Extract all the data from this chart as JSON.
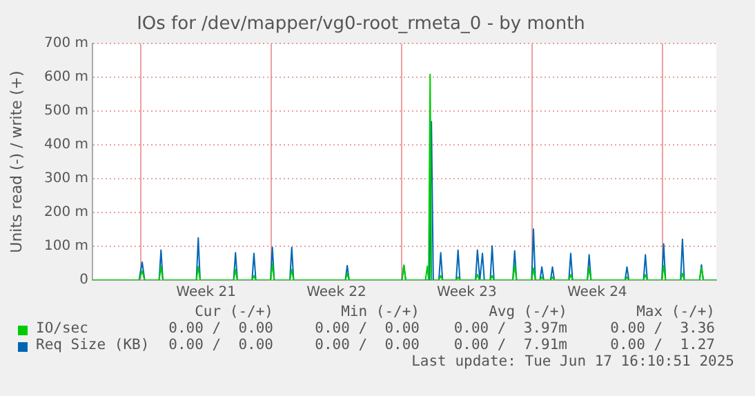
{
  "chart_data": {
    "type": "line",
    "title": "IOs for /dev/mapper/vg0-root_rmeta_0 - by month",
    "ylabel": "Units read (-) / write (+)",
    "xlim": [
      "2025-05-16T09:36",
      "2025-06-18T21:36"
    ],
    "xticks": [
      {
        "value": "2025-05-19",
        "label": null
      },
      {
        "value": "2025-05-22T12:00",
        "label": "Week 21"
      },
      {
        "value": "2025-05-26",
        "label": null
      },
      {
        "value": "2025-05-29T12:00",
        "label": "Week 22"
      },
      {
        "value": "2025-06-02",
        "label": null
      },
      {
        "value": "2025-06-05T12:00",
        "label": "Week 23"
      },
      {
        "value": "2025-06-09",
        "label": null
      },
      {
        "value": "2025-06-12T12:00",
        "label": "Week 24"
      },
      {
        "value": "2025-06-16",
        "label": null
      }
    ],
    "ylim": [
      0,
      700
    ],
    "yticks": [
      0,
      {
        "value": 100,
        "label": "100 m"
      },
      {
        "value": 200,
        "label": "200 m"
      },
      {
        "value": 300,
        "label": "300 m"
      },
      {
        "value": 400,
        "label": "400 m"
      },
      {
        "value": 500,
        "label": "500 m"
      },
      {
        "value": 600,
        "label": "600 m"
      },
      {
        "value": 700,
        "label": "700 m"
      }
    ],
    "grid": true,
    "legend": "bottom",
    "marker": "none",
    "line_style": "solid",
    "series": [
      {
        "name": "IO/sec",
        "color": "#00cc00",
        "x": [
          "2025-05-16T09:36",
          "2025-05-18T21:36",
          "2025-05-19T01:41",
          "2025-05-19T04:48",
          "2025-05-19T23:31",
          "2025-05-20T01:55",
          "2025-05-20T04:19",
          "2025-05-21T23:31",
          "2025-05-22T01:55",
          "2025-05-22T04:19",
          "2025-05-23T23:31",
          "2025-05-24T01:55",
          "2025-05-24T04:19",
          "2025-05-24T23:17",
          "2025-05-25T01:41",
          "2025-05-25T04:05",
          "2025-05-25T23:02",
          "2025-05-26T01:26",
          "2025-05-26T03:50",
          "2025-05-27T00:00",
          "2025-05-27T02:24",
          "2025-05-27T04:48",
          "2025-05-29T23:31",
          "2025-05-30T01:55",
          "2025-05-30T04:19",
          "2025-06-02T00:29",
          "2025-06-02T02:53",
          "2025-06-02T05:17",
          "2025-06-03T06:43",
          "2025-06-03T09:07",
          "2025-06-03T10:48",
          "2025-06-03T12:43",
          "2025-06-03T14:24",
          "2025-06-04T00:00",
          "2025-06-04T02:24",
          "2025-06-04T04:48",
          "2025-06-04T22:19",
          "2025-06-05T00:43",
          "2025-06-05T03:07",
          "2025-06-05T23:17",
          "2025-06-06T01:41",
          "2025-06-06T04:05",
          "2025-06-06T18:14",
          "2025-06-06T20:38",
          "2025-06-06T23:02",
          "2025-06-07T23:17",
          "2025-06-08T01:41",
          "2025-06-08T04:05",
          "2025-06-08T23:31",
          "2025-06-09T01:55",
          "2025-06-09T04:19",
          "2025-06-09T10:19",
          "2025-06-09T12:43",
          "2025-06-09T15:07",
          "2025-06-10T00:00",
          "2025-06-10T02:24",
          "2025-06-10T04:48",
          "2025-06-10T23:31",
          "2025-06-11T01:55",
          "2025-06-11T04:19",
          "2025-06-11T23:17",
          "2025-06-12T01:41",
          "2025-06-12T04:05",
          "2025-06-14T00:00",
          "2025-06-14T02:24",
          "2025-06-14T04:48",
          "2025-06-14T23:46",
          "2025-06-15T02:10",
          "2025-06-15T04:34",
          "2025-06-15T23:17",
          "2025-06-16T01:41",
          "2025-06-16T04:05",
          "2025-06-16T23:31",
          "2025-06-17T01:55",
          "2025-06-17T04:19",
          "2025-06-18T00:00",
          "2025-06-18T02:24",
          "2025-06-18T04:48",
          "2025-06-18T21:36"
        ],
        "values": [
          0,
          0,
          27,
          0,
          0,
          40,
          0,
          0,
          40,
          0,
          0,
          31,
          0,
          0,
          13,
          0,
          0,
          47,
          0,
          0,
          31,
          0,
          0,
          20,
          0,
          0,
          44,
          0,
          0,
          41,
          0,
          609,
          0,
          0,
          13,
          0,
          0,
          9,
          0,
          0,
          17,
          0,
          0,
          13,
          0,
          0,
          45,
          0,
          0,
          35,
          0,
          0,
          9,
          0,
          0,
          9,
          0,
          0,
          16,
          0,
          0,
          35,
          0,
          0,
          9,
          0,
          0,
          16,
          0,
          0,
          43,
          0,
          0,
          20,
          0,
          0,
          37,
          0,
          0
        ]
      },
      {
        "name": "Req Size (KB)",
        "color": "#0066b3",
        "x": [
          "2025-05-16T09:36",
          "2025-05-18T21:36",
          "2025-05-19T01:41",
          "2025-05-19T04:48",
          "2025-05-19T23:31",
          "2025-05-20T01:55",
          "2025-05-20T04:19",
          "2025-05-21T23:31",
          "2025-05-22T01:55",
          "2025-05-22T04:19",
          "2025-05-23T23:31",
          "2025-05-24T01:55",
          "2025-05-24T04:19",
          "2025-05-24T23:17",
          "2025-05-25T01:41",
          "2025-05-25T04:05",
          "2025-05-25T23:02",
          "2025-05-26T01:26",
          "2025-05-26T03:50",
          "2025-05-27T00:00",
          "2025-05-27T02:24",
          "2025-05-27T04:48",
          "2025-05-29T23:31",
          "2025-05-30T01:55",
          "2025-05-30T04:19",
          "2025-06-02T00:29",
          "2025-06-02T02:53",
          "2025-06-02T05:17",
          "2025-06-03T12:00",
          "2025-06-03T14:24",
          "2025-06-03T16:48",
          "2025-06-04T00:00",
          "2025-06-04T02:24",
          "2025-06-04T04:48",
          "2025-06-04T22:19",
          "2025-06-05T00:43",
          "2025-06-05T03:07",
          "2025-06-05T23:17",
          "2025-06-06T01:41",
          "2025-06-06T04:48",
          "2025-06-06T08:10",
          "2025-06-06T10:34",
          "2025-06-06T18:14",
          "2025-06-06T20:38",
          "2025-06-06T23:02",
          "2025-06-07T23:17",
          "2025-06-08T01:41",
          "2025-06-08T04:05",
          "2025-06-08T23:31",
          "2025-06-09T01:55",
          "2025-06-09T04:19",
          "2025-06-09T10:19",
          "2025-06-09T12:43",
          "2025-06-09T15:07",
          "2025-06-10T00:00",
          "2025-06-10T02:24",
          "2025-06-10T04:48",
          "2025-06-10T23:31",
          "2025-06-11T01:55",
          "2025-06-11T04:19",
          "2025-06-11T23:17",
          "2025-06-12T01:41",
          "2025-06-12T04:05",
          "2025-06-14T00:00",
          "2025-06-14T02:24",
          "2025-06-14T04:48",
          "2025-06-14T23:46",
          "2025-06-15T02:10",
          "2025-06-15T04:34",
          "2025-06-15T23:17",
          "2025-06-16T01:41",
          "2025-06-16T04:05",
          "2025-06-16T23:31",
          "2025-06-17T01:55",
          "2025-06-17T04:19",
          "2025-06-18T00:00",
          "2025-06-18T02:24",
          "2025-06-18T04:48",
          "2025-06-18T21:36"
        ],
        "values": [
          0,
          0,
          53,
          0,
          0,
          89,
          0,
          0,
          125,
          0,
          0,
          81,
          0,
          0,
          79,
          0,
          0,
          97,
          0,
          0,
          97,
          0,
          0,
          43,
          0,
          0,
          44,
          0,
          0,
          469,
          0,
          0,
          81,
          0,
          0,
          89,
          0,
          0,
          89,
          0,
          79,
          0,
          0,
          101,
          0,
          0,
          87,
          0,
          0,
          151,
          0,
          0,
          39,
          0,
          0,
          39,
          0,
          0,
          79,
          0,
          0,
          75,
          0,
          0,
          39,
          0,
          0,
          75,
          0,
          0,
          107,
          0,
          0,
          121,
          0,
          0,
          45,
          0,
          0
        ]
      }
    ],
    "annotations": [
      "Cur (-/+)",
      "Min (-/+)",
      "Avg (-/+)",
      "Max (-/+)",
      "0.00 /  0.00",
      "0.00 /  0.00",
      "0.00 /  3.97m",
      "0.00 /  3.36",
      "0.00 /  0.00",
      "0.00 /  0.00",
      "0.00 /  7.91m",
      "0.00 /  1.27",
      "Last update: Tue Jun 17 16:10:51 2025"
    ]
  }
}
